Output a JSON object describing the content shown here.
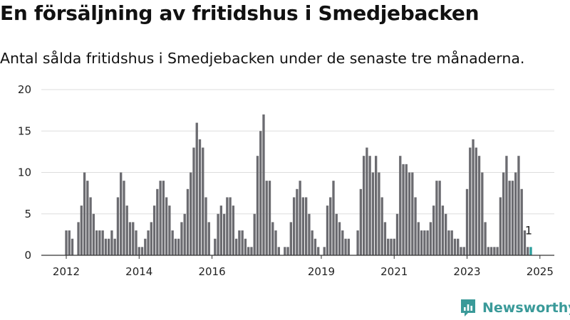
{
  "title": "En försäljning av fritidshus i Smedjebacken",
  "subtitle": "Antal sålda fritidshus i Smedjebacken under de senaste tre månaderna.",
  "brand": "Newsworthy",
  "colors": {
    "bar": "#6b6b70",
    "highlight": "#2a9d9b",
    "grid": "#dddddd",
    "brand": "#3a9a99"
  },
  "chart_data": {
    "type": "bar",
    "title": "",
    "xlabel": "",
    "ylabel": "",
    "ylim": [
      0,
      20
    ],
    "yticks": [
      0,
      5,
      10,
      15,
      20
    ],
    "xticks": [
      "2012",
      "2014",
      "2016",
      "2019",
      "2021",
      "2023",
      "2025"
    ],
    "start": "2012-01",
    "frequency": "monthly",
    "grid": true,
    "values": [
      3,
      3,
      2,
      0,
      4,
      6,
      10,
      9,
      7,
      5,
      3,
      3,
      3,
      2,
      2,
      3,
      2,
      7,
      10,
      9,
      6,
      4,
      4,
      3,
      1,
      1,
      2,
      3,
      4,
      6,
      8,
      9,
      9,
      7,
      6,
      3,
      2,
      2,
      4,
      5,
      8,
      10,
      13,
      16,
      14,
      13,
      7,
      4,
      0,
      2,
      5,
      6,
      5,
      7,
      7,
      6,
      2,
      3,
      3,
      2,
      1,
      1,
      5,
      12,
      15,
      17,
      9,
      9,
      4,
      3,
      1,
      0,
      1,
      1,
      4,
      7,
      8,
      9,
      7,
      7,
      5,
      3,
      2,
      1,
      0,
      1,
      6,
      7,
      9,
      5,
      4,
      3,
      2,
      2,
      0,
      0,
      3,
      8,
      12,
      13,
      12,
      10,
      12,
      10,
      7,
      4,
      2,
      2,
      2,
      5,
      12,
      11,
      11,
      10,
      10,
      7,
      4,
      3,
      3,
      3,
      4,
      6,
      9,
      9,
      6,
      5,
      3,
      3,
      2,
      2,
      1,
      1,
      8,
      13,
      14,
      13,
      12,
      10,
      4,
      1,
      1,
      1,
      1,
      7,
      10,
      12,
      9,
      9,
      10,
      12,
      8,
      3,
      1,
      1
    ],
    "highlight_last": true,
    "annotation": "1"
  }
}
